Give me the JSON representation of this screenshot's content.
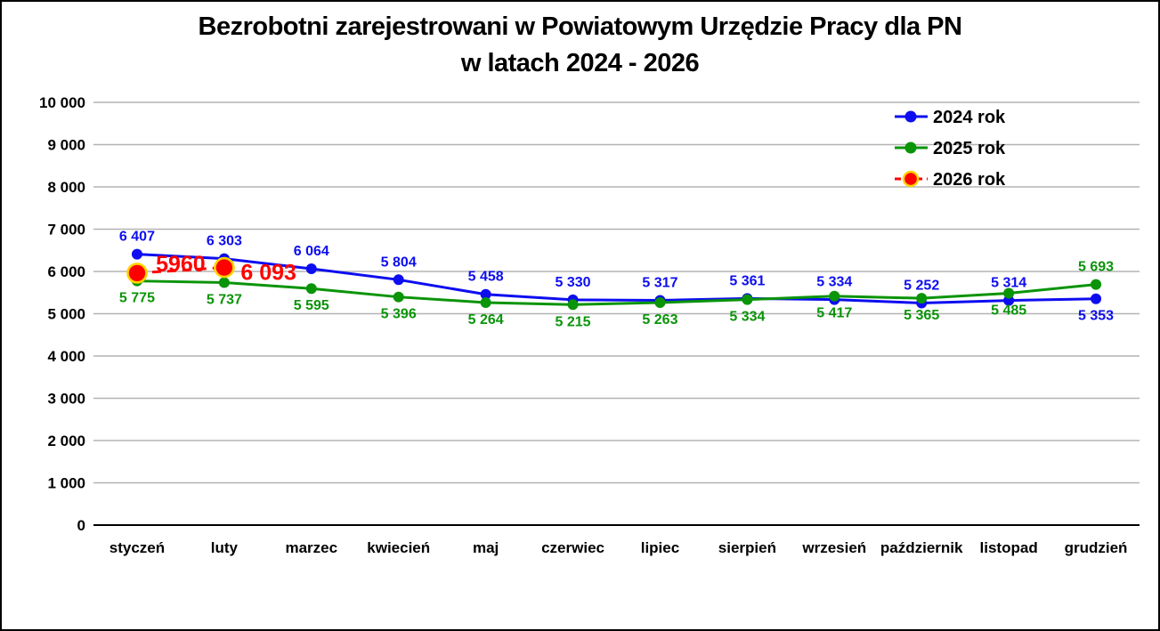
{
  "title": {
    "line1": "Bezrobotni zarejestrowani w Powiatowym Urzędzie Pracy dla PN",
    "line2": "w latach 2024 - 2026"
  },
  "chart_data": {
    "type": "line",
    "categories": [
      "styczeń",
      "luty",
      "marzec",
      "kwiecień",
      "maj",
      "czerwiec",
      "lipiec",
      "sierpień",
      "wrzesień",
      "październik",
      "listopad",
      "grudzień"
    ],
    "y_axis": {
      "min": 0,
      "max": 10000,
      "step": 1000,
      "tick_labels": [
        "0",
        "1 000",
        "2 000",
        "3 000",
        "4 000",
        "5 000",
        "6 000",
        "7 000",
        "8 000",
        "9 000",
        "10 000"
      ]
    },
    "grid": true,
    "legend_position": "top-right",
    "colors": {
      "grid": "#b3b3b3",
      "axis": "#000000",
      "background": "#ffffff",
      "blue": "#0d0df0",
      "green": "#0a9408",
      "red": "#ff0000",
      "marker_ring_yellow": "#ffd400"
    },
    "series": [
      {
        "name": "2024 rok",
        "color": "#0d0df0",
        "line_style": "solid",
        "marker": "circle",
        "marker_radius": 6,
        "values": [
          6407,
          6303,
          6064,
          5804,
          5458,
          5330,
          5317,
          5361,
          5334,
          5252,
          5314,
          5353
        ],
        "labels": [
          "6 407",
          "6 303",
          "6 064",
          "5 804",
          "5 458",
          "5 330",
          "5 317",
          "5 361",
          "5 334",
          "5 252",
          "5 314",
          "5 353"
        ],
        "label_position": "above",
        "label_position_exceptions": {
          "11": "below"
        }
      },
      {
        "name": "2025 rok",
        "color": "#0a9408",
        "line_style": "solid",
        "marker": "circle",
        "marker_radius": 6,
        "values": [
          5775,
          5737,
          5595,
          5396,
          5264,
          5215,
          5263,
          5334,
          5417,
          5365,
          5485,
          5693
        ],
        "labels": [
          "5 775",
          "5 737",
          "5 595",
          "5 396",
          "5 264",
          "5 215",
          "5 263",
          "5 334",
          "5 417",
          "5 365",
          "5 485",
          "5 693"
        ],
        "label_position": "below",
        "label_position_exceptions": {
          "11": "above"
        }
      },
      {
        "name": "2026 rok",
        "color": "#ff0000",
        "line_style": "dashed",
        "marker": "circle",
        "marker_radius": 10.5,
        "marker_border": "#ffd400",
        "values": [
          5960,
          6093,
          null,
          null,
          null,
          null,
          null,
          null,
          null,
          null,
          null,
          null
        ],
        "labels": [
          "5960",
          "6 093"
        ],
        "label_position": "inline",
        "label_font_size": 25
      }
    ]
  }
}
